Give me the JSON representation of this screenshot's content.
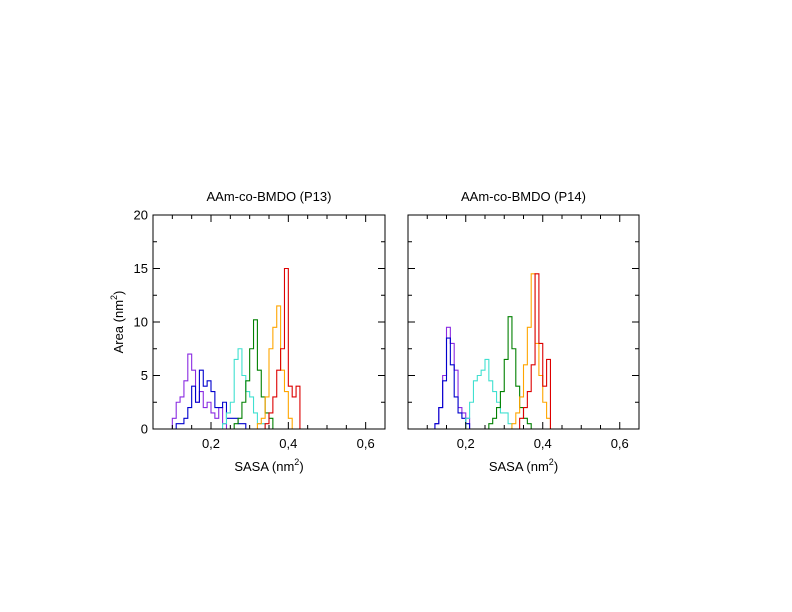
{
  "chart_data": [
    {
      "type": "histogram-step",
      "title": "AAm-co-BMDO (P13)",
      "xlabel": "SASA (nm",
      "xlabel_sup": "2",
      "xlabel_close": ")",
      "ylabel": "Area (nm",
      "ylabel_sup": "2",
      "ylabel_close": ")",
      "xlim": [
        0.05,
        0.65
      ],
      "ylim": [
        0,
        20
      ],
      "xticks": [
        {
          "v": 0.2,
          "label": "0,2"
        },
        {
          "v": 0.4,
          "label": "0,4"
        },
        {
          "v": 0.6,
          "label": "0,6"
        }
      ],
      "yticks": [
        {
          "v": 0,
          "label": "0"
        },
        {
          "v": 5,
          "label": "5"
        },
        {
          "v": 10,
          "label": "10"
        },
        {
          "v": 15,
          "label": "15"
        },
        {
          "v": 20,
          "label": "20"
        }
      ],
      "grid": false,
      "bin_width": 0.01,
      "series": [
        {
          "color": "#8a2be2",
          "start": 0.1,
          "values": [
            1,
            2.5,
            3,
            4.5,
            7,
            5.5,
            2.5,
            3.5,
            2,
            2.5,
            1.5,
            1,
            2,
            0.5,
            0
          ]
        },
        {
          "color": "#0000cd",
          "start": 0.11,
          "values": [
            0.5,
            0.5,
            1,
            2,
            4,
            2.5,
            5.5,
            4,
            4.5,
            3.5,
            2,
            2,
            2.5,
            1,
            1,
            1,
            0.5,
            0.5,
            0
          ]
        },
        {
          "color": "#40e0d0",
          "start": 0.23,
          "values": [
            0.5,
            1.5,
            2.5,
            6.5,
            7.5,
            5,
            3.5,
            3,
            1.5,
            0.5,
            0.5,
            0
          ]
        },
        {
          "color": "#008000",
          "start": 0.26,
          "values": [
            0.5,
            1,
            2.5,
            4.5,
            7.5,
            10.2,
            5.5,
            3,
            1.5,
            1,
            0
          ]
        },
        {
          "color": "#ffa500",
          "start": 0.32,
          "values": [
            0.5,
            1,
            3,
            7.5,
            9.5,
            11.5,
            5.5,
            3.5,
            1,
            0
          ]
        },
        {
          "color": "#dd0000",
          "start": 0.34,
          "values": [
            0.5,
            1.5,
            3,
            5.5,
            7.5,
            15,
            4,
            3,
            4,
            0
          ]
        }
      ]
    },
    {
      "type": "histogram-step",
      "title": "AAm-co-BMDO (P14)",
      "xlabel": "SASA (nm",
      "xlabel_sup": "2",
      "xlabel_close": ")",
      "xlim": [
        0.05,
        0.65
      ],
      "ylim": [
        0,
        20
      ],
      "xticks": [
        {
          "v": 0.2,
          "label": "0,2"
        },
        {
          "v": 0.4,
          "label": "0,4"
        },
        {
          "v": 0.6,
          "label": "0,6"
        }
      ],
      "yticks": [
        {
          "v": 0,
          "label": ""
        },
        {
          "v": 5,
          "label": ""
        },
        {
          "v": 10,
          "label": ""
        },
        {
          "v": 15,
          "label": ""
        },
        {
          "v": 20,
          "label": ""
        }
      ],
      "grid": false,
      "bin_width": 0.01,
      "series": [
        {
          "color": "#8a2be2",
          "start": 0.12,
          "values": [
            0.5,
            2,
            5,
            9.5,
            8,
            5.5,
            2,
            1.5,
            1,
            0
          ]
        },
        {
          "color": "#0000cd",
          "start": 0.12,
          "values": [
            0.5,
            2,
            4.5,
            8.5,
            6,
            3,
            1.5,
            1,
            0.5,
            0
          ]
        },
        {
          "color": "#40e0d0",
          "start": 0.2,
          "values": [
            1,
            2.5,
            4.5,
            5,
            5.5,
            6.5,
            4.5,
            3.5,
            2.5,
            1.5,
            1.5,
            0.5,
            0
          ]
        },
        {
          "color": "#008000",
          "start": 0.26,
          "values": [
            0.5,
            1,
            2,
            3.5,
            6.5,
            10.5,
            7.5,
            4,
            2,
            1,
            0.5,
            0
          ]
        },
        {
          "color": "#ffa500",
          "start": 0.32,
          "values": [
            0.5,
            1.5,
            3,
            6,
            9.5,
            14.5,
            8,
            5,
            2.5,
            1,
            0
          ]
        },
        {
          "color": "#dd0000",
          "start": 0.34,
          "values": [
            1,
            2,
            3.5,
            6,
            14.5,
            8,
            4,
            6.5,
            0
          ]
        }
      ]
    }
  ]
}
